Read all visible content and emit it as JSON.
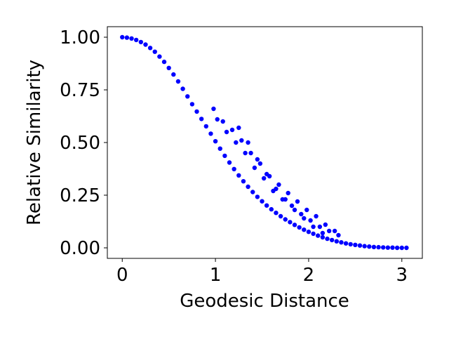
{
  "chart_data": {
    "type": "scatter",
    "title": "",
    "xlabel": "Geodesic Distance",
    "ylabel": "Relative Similarity",
    "xlim": [
      -0.16,
      3.22
    ],
    "ylim": [
      -0.05,
      1.05
    ],
    "xticks": [
      0,
      1,
      2,
      3
    ],
    "xtick_labels": [
      "0",
      "1",
      "2",
      "3"
    ],
    "yticks": [
      0.0,
      0.25,
      0.5,
      0.75,
      1.0
    ],
    "ytick_labels": [
      "0.00",
      "0.25",
      "0.50",
      "0.75",
      "1.00"
    ],
    "grid": false,
    "legend": "none",
    "marker_color": "#0000ff",
    "series": [
      {
        "x": [
          0.0,
          0.05,
          0.1,
          0.15,
          0.2,
          0.25,
          0.3,
          0.35,
          0.4,
          0.45,
          0.5,
          0.55,
          0.6,
          0.65,
          0.7,
          0.75,
          0.8,
          0.85,
          0.9,
          0.95,
          1.0,
          1.05,
          1.1,
          1.15,
          1.2,
          1.25,
          1.3,
          1.35,
          1.4,
          1.45,
          1.5,
          1.55,
          1.6,
          1.65,
          1.7,
          1.75,
          1.8,
          1.85,
          1.9,
          1.95,
          2.0,
          2.05,
          2.1,
          2.15,
          2.2,
          2.25,
          2.3,
          2.35,
          2.4,
          2.45,
          2.5,
          2.55,
          2.6,
          2.65,
          2.7,
          2.75,
          2.8,
          2.85,
          2.9,
          2.95,
          3.0,
          3.05,
          0.98,
          1.02,
          1.08,
          1.12,
          1.18,
          1.22,
          1.28,
          1.32,
          1.38,
          1.42,
          1.48,
          1.52,
          1.58,
          1.62,
          1.68,
          1.72,
          1.78,
          1.82,
          1.88,
          1.92,
          1.98,
          2.02,
          2.08,
          2.12,
          2.18,
          2.22,
          2.28,
          2.32,
          1.25,
          1.35,
          1.45,
          1.55,
          1.65,
          1.75,
          1.85,
          1.95,
          2.05,
          2.15
        ],
        "y": [
          1.0,
          0.998,
          0.994,
          0.987,
          0.977,
          0.965,
          0.949,
          0.931,
          0.908,
          0.883,
          0.854,
          0.823,
          0.79,
          0.755,
          0.719,
          0.682,
          0.647,
          0.612,
          0.577,
          0.542,
          0.506,
          0.471,
          0.437,
          0.405,
          0.374,
          0.344,
          0.316,
          0.29,
          0.265,
          0.242,
          0.221,
          0.201,
          0.183,
          0.166,
          0.15,
          0.135,
          0.122,
          0.109,
          0.097,
          0.086,
          0.076,
          0.067,
          0.058,
          0.05,
          0.043,
          0.037,
          0.031,
          0.026,
          0.021,
          0.017,
          0.014,
          0.011,
          0.008,
          0.006,
          0.004,
          0.003,
          0.002,
          0.001,
          0.001,
          0.0,
          0.0,
          0.0,
          0.66,
          0.61,
          0.6,
          0.55,
          0.56,
          0.5,
          0.51,
          0.45,
          0.45,
          0.38,
          0.4,
          0.33,
          0.34,
          0.27,
          0.3,
          0.23,
          0.26,
          0.2,
          0.22,
          0.16,
          0.18,
          0.13,
          0.15,
          0.1,
          0.11,
          0.08,
          0.08,
          0.06,
          0.57,
          0.5,
          0.42,
          0.35,
          0.28,
          0.23,
          0.18,
          0.14,
          0.1,
          0.07
        ]
      }
    ]
  }
}
